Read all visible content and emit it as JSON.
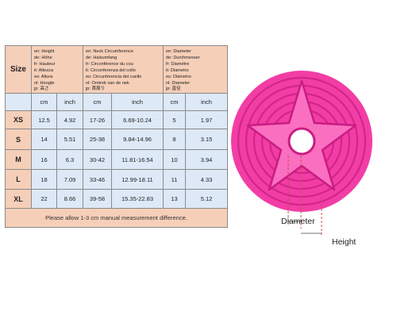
{
  "table": {
    "size_label": "Size",
    "height_desc": [
      "en: Height",
      "de: Höhe",
      "fr: Hauteur",
      "it: Altezza",
      "es: Altura",
      "nl: Hoogte",
      "jp: 高さ"
    ],
    "neck_desc": [
      "en: Neck Circumference",
      "de: Halsumfang",
      "fr: Circonférence du cou",
      "it: Circonferenza del collo",
      "es: Circunferencia del cuello",
      "nl: Omtrek van de nek",
      "jp: 首周り"
    ],
    "diameter_desc": [
      "en: Diameter",
      "de: Durchmesser",
      "fr: Diamètre",
      "it: Diametro",
      "es: Diámetro",
      "nl: Diameter",
      "jp: 直径"
    ],
    "units": [
      "cm",
      "inch",
      "cm",
      "inch",
      "cm",
      "inch"
    ],
    "rows": [
      {
        "size": "XS",
        "values": [
          "12.5",
          "4.92",
          "17-26",
          "6.69-10.24",
          "5",
          "1.97"
        ]
      },
      {
        "size": "S",
        "values": [
          "14",
          "5.51",
          "25-38",
          "9.84-14.96",
          "8",
          "3.15"
        ]
      },
      {
        "size": "M",
        "values": [
          "16",
          "6.3",
          "30-42",
          "11.81-16.54",
          "10",
          "3.94"
        ]
      },
      {
        "size": "L",
        "values": [
          "18",
          "7.09",
          "33-46",
          "12.99-18.11",
          "11",
          "4.33"
        ]
      },
      {
        "size": "XL",
        "values": [
          "22",
          "8.66",
          "39-58",
          "15.35-22.83",
          "13",
          "5.12"
        ]
      }
    ],
    "note": "Please allow 1-3 cm manual measurement difference."
  },
  "product": {
    "diameter_label": "Diameter",
    "height_label": "Height",
    "colors": {
      "collar": "#f23da5",
      "collar_dark": "#c81d83",
      "collar_light": "#fb6fc0"
    }
  }
}
